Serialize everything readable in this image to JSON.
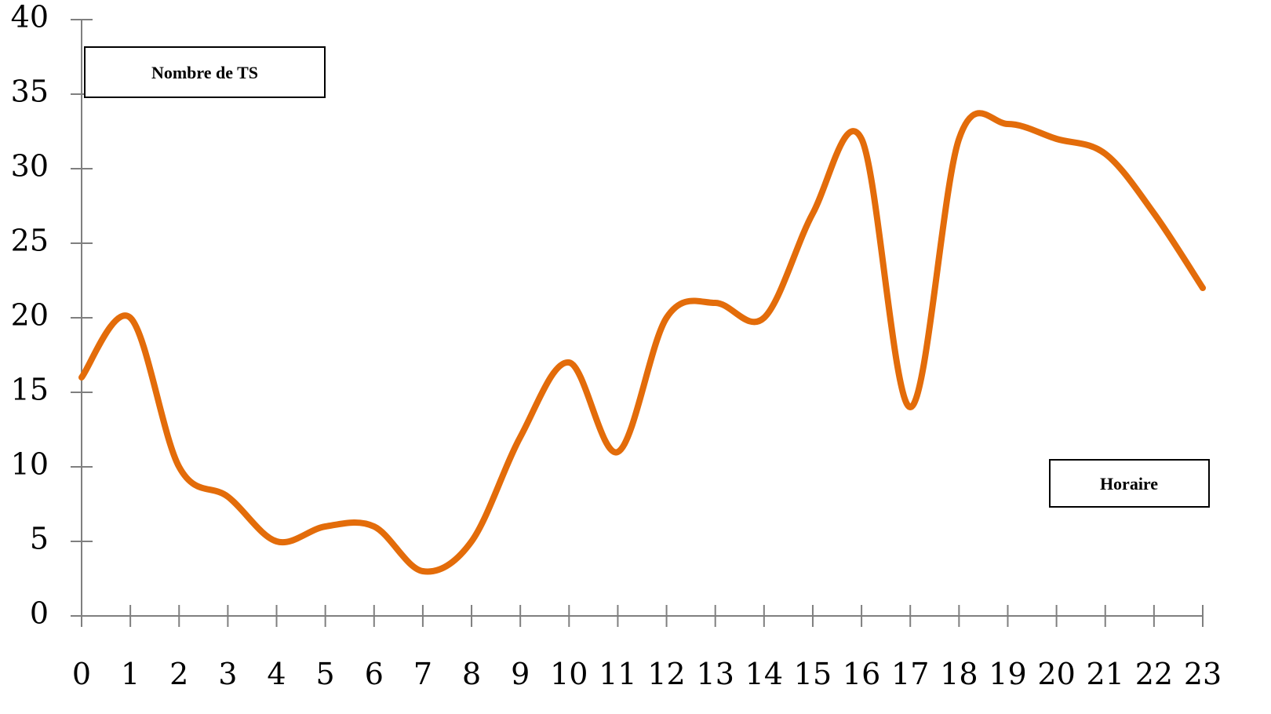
{
  "chart_data": {
    "type": "line",
    "ylabel": "Nombre de TS",
    "xlabel": "Horaire",
    "x": [
      0,
      1,
      2,
      3,
      4,
      5,
      6,
      7,
      8,
      9,
      10,
      11,
      12,
      13,
      14,
      15,
      16,
      17,
      18,
      19,
      20,
      21,
      22,
      23
    ],
    "x_tick_labels": [
      "0",
      "1",
      "2",
      "3",
      "4",
      "5",
      "6",
      "7",
      "8",
      "9",
      "10",
      "11",
      "12",
      "13",
      "14",
      "15",
      "16",
      "17",
      "18",
      "19",
      "20",
      "21",
      "22",
      "23"
    ],
    "y_tick_labels": [
      "0",
      "5",
      "10",
      "15",
      "20",
      "25",
      "30",
      "35",
      "40"
    ],
    "ylim": [
      0,
      40
    ],
    "xlim": [
      0,
      23
    ],
    "grid": false,
    "series": [
      {
        "values": [
          16,
          20,
          10,
          8,
          5,
          6,
          6,
          3,
          5,
          12,
          17,
          11,
          20,
          21,
          20,
          27,
          32,
          14,
          32,
          33,
          32,
          31,
          27,
          22
        ],
        "color": "#E36C0A",
        "smooth": true
      }
    ]
  }
}
